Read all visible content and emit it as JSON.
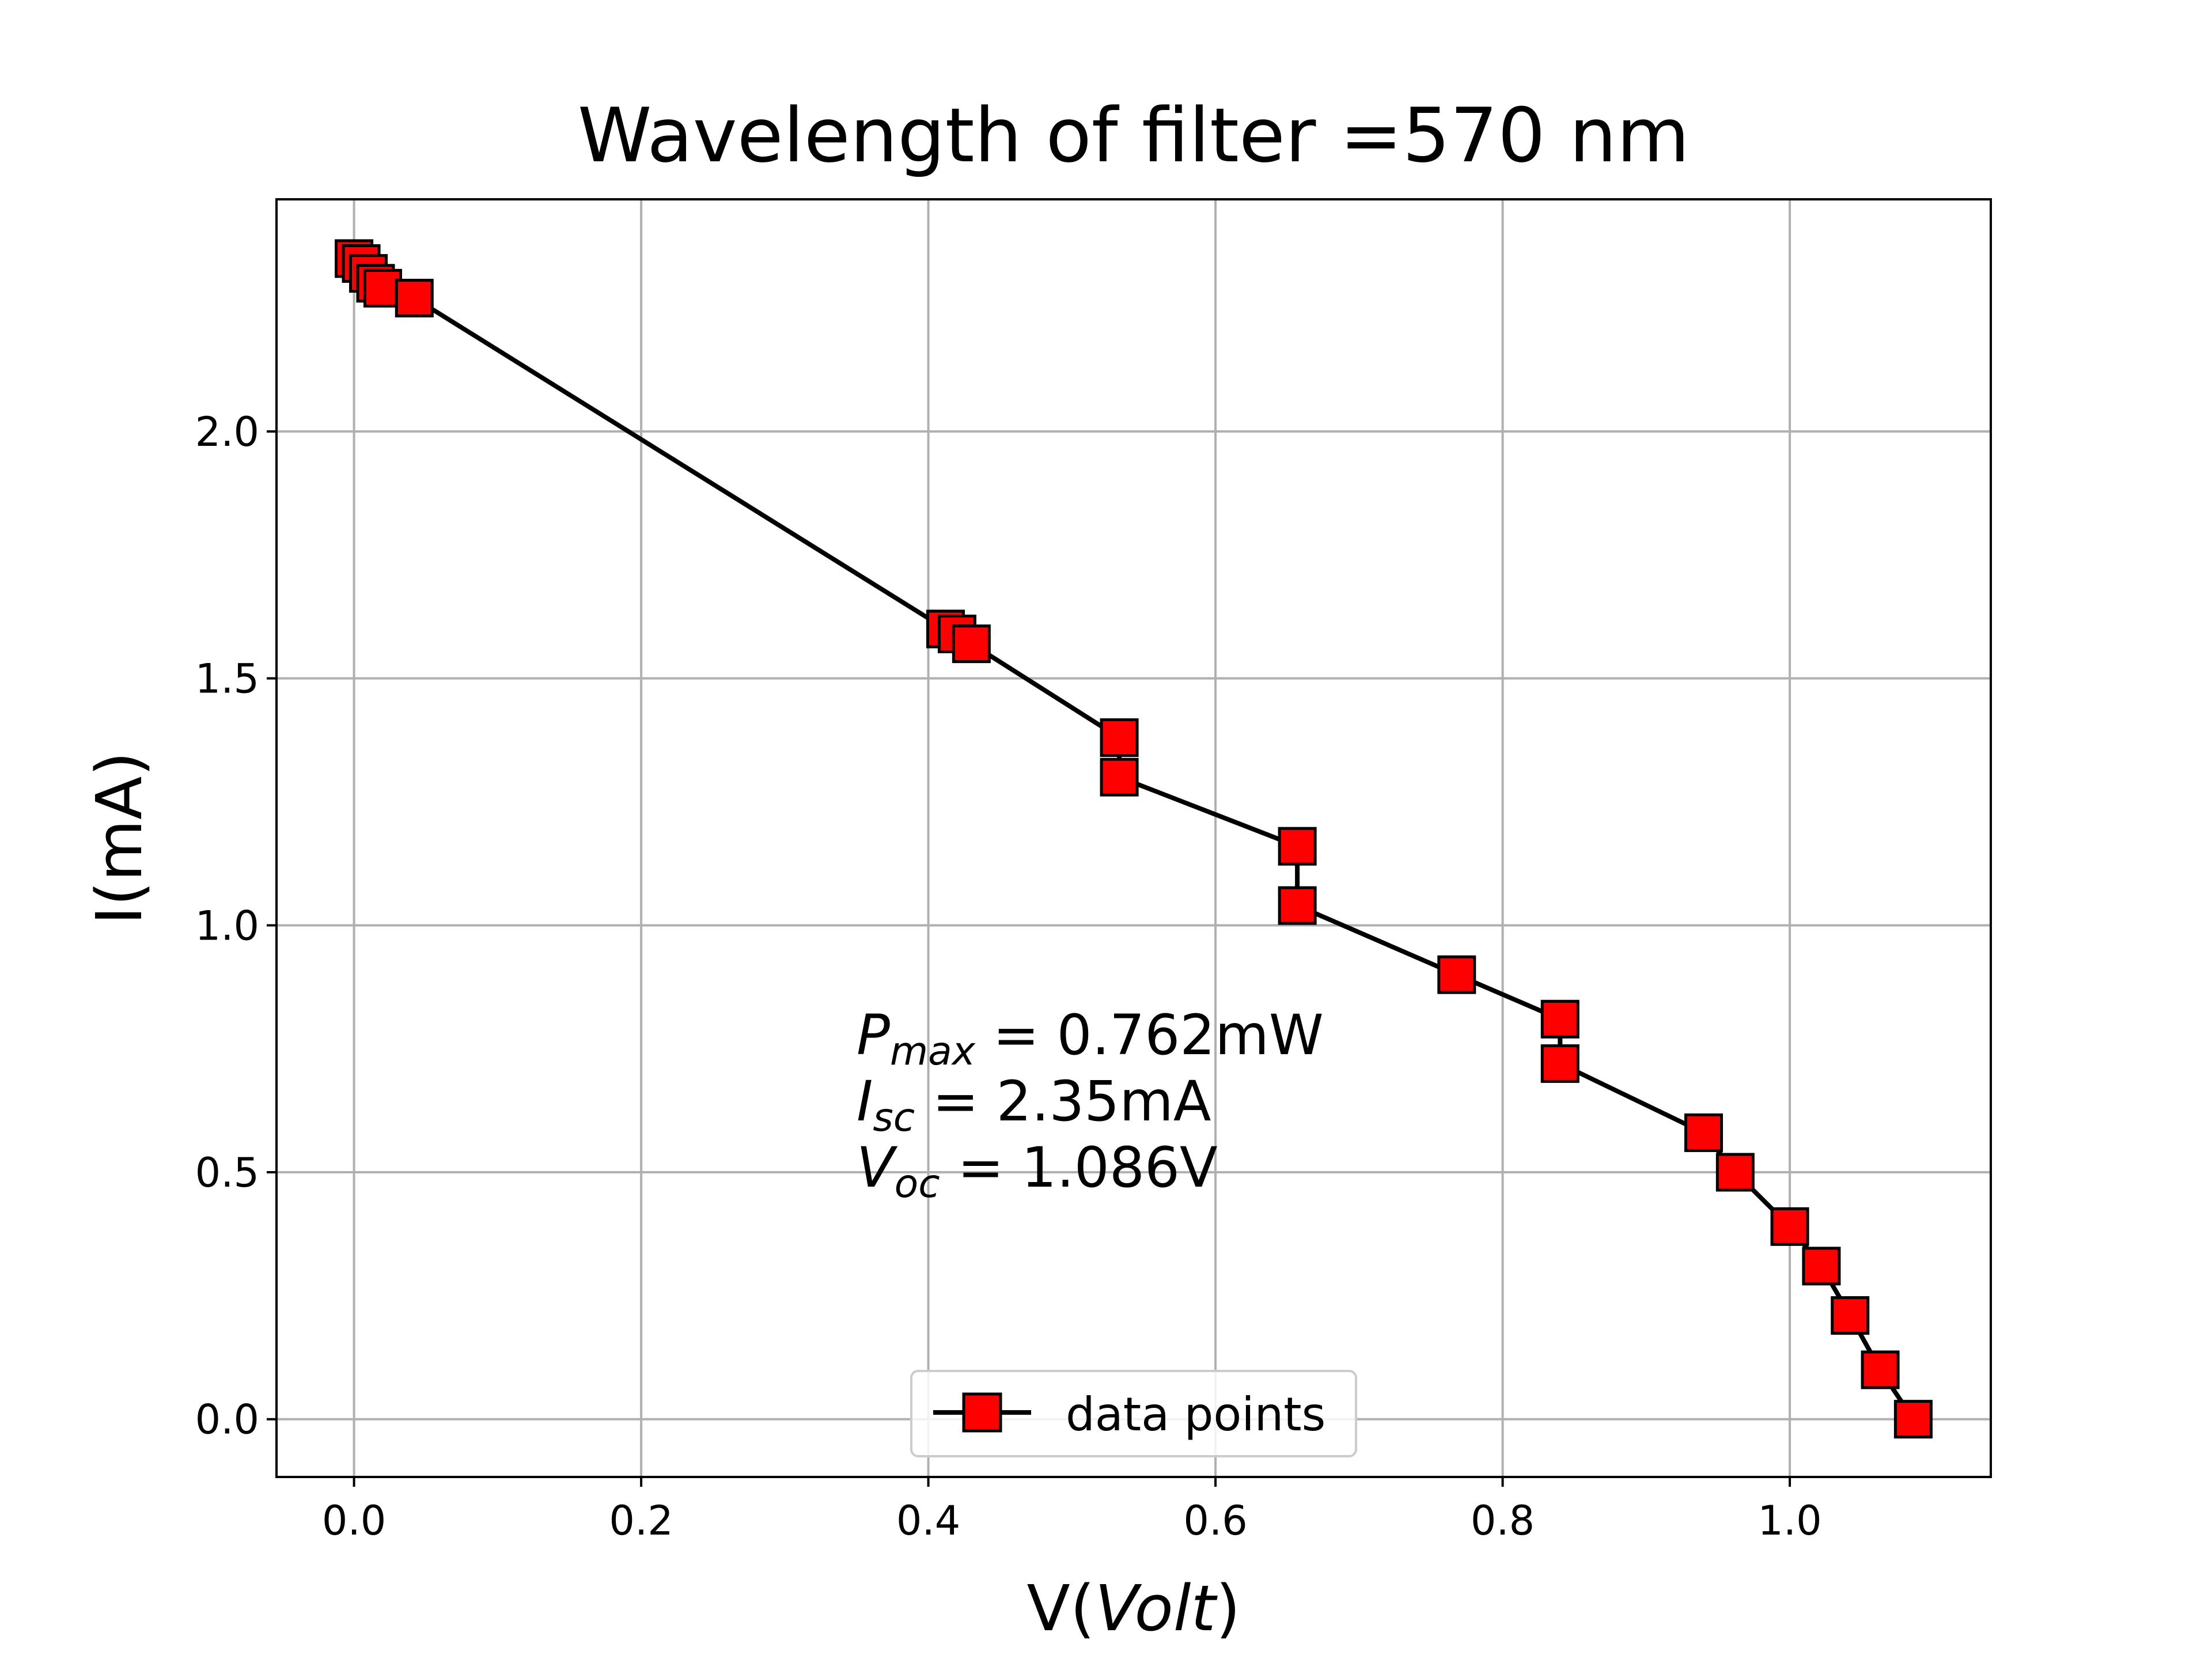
{
  "chart_data": {
    "type": "line",
    "title": "Wavelength of filter =570 nm",
    "xlabel": "V(Volt)",
    "xlabel_parts": {
      "prefix": "V(",
      "italic": "Volt",
      "suffix": ")"
    },
    "ylabel": "I(mA)",
    "xlim": [
      -0.054,
      1.14
    ],
    "ylim": [
      -0.117,
      2.47
    ],
    "xticks": [
      0.0,
      0.2,
      0.4,
      0.6,
      0.8,
      1.0
    ],
    "xtick_labels": [
      "0.0",
      "0.2",
      "0.4",
      "0.6",
      "0.8",
      "1.0"
    ],
    "yticks": [
      0.0,
      0.5,
      1.0,
      1.5,
      2.0
    ],
    "ytick_labels": [
      "0.0",
      "0.5",
      "1.0",
      "1.5",
      "2.0"
    ],
    "grid": true,
    "legend_position": "lower center",
    "series": [
      {
        "name": "data points",
        "line_color": "#000000",
        "marker": "square",
        "marker_face": "#ff0000",
        "marker_edge": "#000000",
        "points": [
          {
            "x": 0.0,
            "y": 2.35
          },
          {
            "x": 0.005,
            "y": 2.34
          },
          {
            "x": 0.01,
            "y": 2.32
          },
          {
            "x": 0.015,
            "y": 2.3
          },
          {
            "x": 0.02,
            "y": 2.29
          },
          {
            "x": 0.042,
            "y": 2.27
          },
          {
            "x": 0.412,
            "y": 1.6
          },
          {
            "x": 0.42,
            "y": 1.59
          },
          {
            "x": 0.43,
            "y": 1.57
          },
          {
            "x": 0.533,
            "y": 1.38
          },
          {
            "x": 0.533,
            "y": 1.3
          },
          {
            "x": 0.657,
            "y": 1.16
          },
          {
            "x": 0.657,
            "y": 1.04
          },
          {
            "x": 0.768,
            "y": 0.9
          },
          {
            "x": 0.84,
            "y": 0.81
          },
          {
            "x": 0.84,
            "y": 0.72
          },
          {
            "x": 0.94,
            "y": 0.58
          },
          {
            "x": 0.962,
            "y": 0.5
          },
          {
            "x": 1.0,
            "y": 0.39
          },
          {
            "x": 1.022,
            "y": 0.31
          },
          {
            "x": 1.042,
            "y": 0.21
          },
          {
            "x": 1.063,
            "y": 0.1
          },
          {
            "x": 1.086,
            "y": 0.0
          }
        ]
      }
    ],
    "annotations": [
      {
        "symbol": "P",
        "subscript": "max",
        "text": " = 0.762mW"
      },
      {
        "symbol": "I",
        "subscript": "sc",
        "text": " = 2.35mA"
      },
      {
        "symbol": "V",
        "subscript": "oc",
        "text": " = 1.086V"
      }
    ],
    "colors": {
      "grid": "#b0b0b0",
      "axes": "#000000",
      "legend_border": "#cccccc"
    }
  }
}
